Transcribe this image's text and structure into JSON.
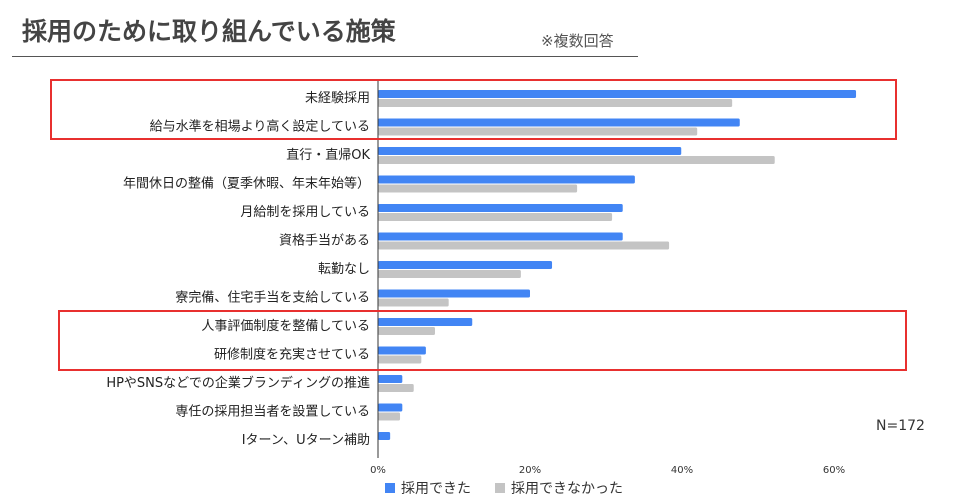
{
  "title": "採用のために取り組んでいる施策",
  "note": "※複数回答",
  "sample_size": "N=172",
  "colors": {
    "hired": "#4285f4",
    "not_hired": "#c4c4c4",
    "highlight": "#e8302f"
  },
  "chart_data": {
    "type": "bar",
    "orientation": "horizontal",
    "title": "採用のために取り組んでいる施策",
    "categories": [
      "未経験採用",
      "給与水準を相場より高く設定している",
      "直行・直帰OK",
      "年間休日の整備（夏季休暇、年末年始等）",
      "月給制を採用している",
      "資格手当がある",
      "転勤なし",
      "寮完備、住宅手当を支給している",
      "人事評価制度を整備している",
      "研修制度を充実させている",
      "HPやSNSなどでの企業ブランディングの推進",
      "専任の採用担当者を設置している",
      "Iターン、Uターン補助"
    ],
    "series": [
      {
        "name": "採用できた",
        "values": [
          62.9,
          47.6,
          39.9,
          33.8,
          32.2,
          32.2,
          22.9,
          20.0,
          12.4,
          6.3,
          3.2,
          3.2,
          1.6
        ]
      },
      {
        "name": "採用できなかった",
        "values": [
          46.6,
          42.0,
          52.2,
          26.2,
          30.8,
          38.3,
          18.8,
          9.3,
          7.5,
          5.7,
          4.7,
          2.9,
          0
        ]
      }
    ],
    "xlim": [
      0,
      70
    ],
    "xticks": [
      "0%",
      "20%",
      "40%",
      "60%"
    ],
    "xtick_values": [
      0,
      20,
      40,
      60
    ],
    "legend": "bottom",
    "highlighted_groups": [
      [
        0,
        1
      ],
      [
        8,
        9
      ]
    ]
  }
}
